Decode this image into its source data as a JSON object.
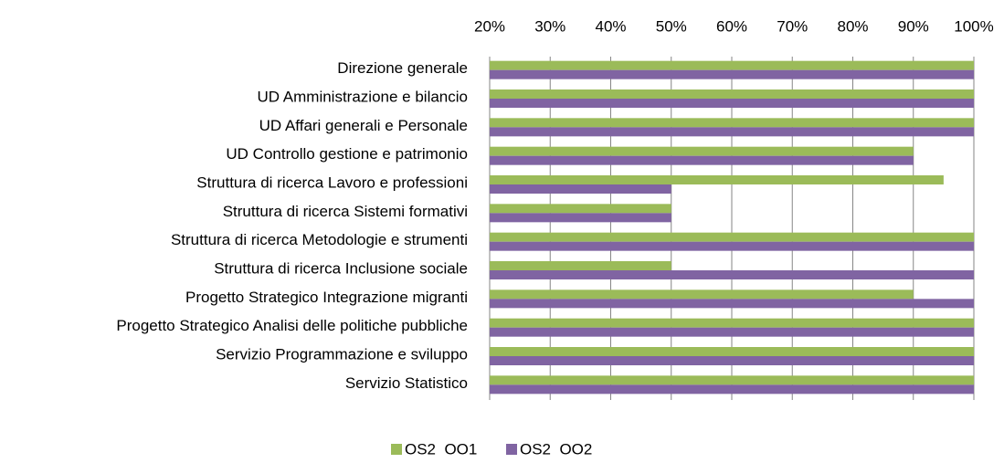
{
  "chart_data": {
    "type": "hbar",
    "categories": [
      "Direzione generale",
      "UD Amministrazione e bilancio",
      "UD Affari generali e Personale",
      "UD Controllo gestione e patrimonio",
      "Struttura di ricerca Lavoro e professioni",
      "Struttura di ricerca Sistemi formativi",
      "Struttura di ricerca Metodologie e strumenti",
      "Struttura di ricerca Inclusione sociale",
      "Progetto Strategico Integrazione migranti",
      "Progetto Strategico Analisi delle politiche pubbliche",
      "Servizio Programmazione e sviluppo",
      "Servizio Statistico"
    ],
    "series": [
      {
        "name": "OS2  OO1",
        "color": "#9bbb59",
        "values": [
          100,
          100,
          100,
          90,
          95,
          50,
          100,
          50,
          90,
          100,
          100,
          100
        ]
      },
      {
        "name": "OS2  OO2",
        "color": "#8064a2",
        "values": [
          100,
          100,
          100,
          90,
          50,
          50,
          100,
          100,
          100,
          100,
          100,
          100
        ]
      }
    ],
    "xlim": [
      20,
      100
    ],
    "xticks": [
      {
        "value": 20,
        "label": "20%"
      },
      {
        "value": 30,
        "label": "30%"
      },
      {
        "value": 40,
        "label": "40%"
      },
      {
        "value": 50,
        "label": "50%"
      },
      {
        "value": 60,
        "label": "60%"
      },
      {
        "value": 70,
        "label": "70%"
      },
      {
        "value": 80,
        "label": "80%"
      },
      {
        "value": 90,
        "label": "90%"
      },
      {
        "value": 100,
        "label": "100%"
      }
    ],
    "grid": true,
    "legend": "bottom"
  }
}
